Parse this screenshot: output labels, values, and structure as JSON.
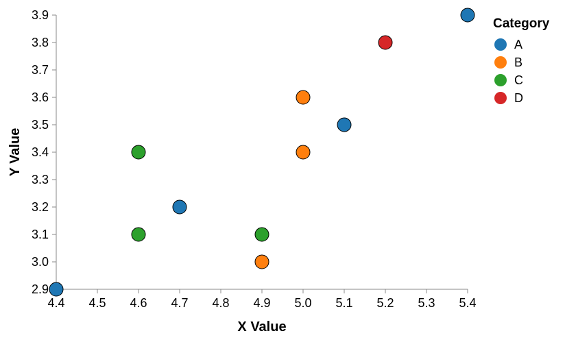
{
  "chart_data": {
    "type": "scatter",
    "title": "",
    "xlabel": "X Value",
    "ylabel": "Y Value",
    "xlim": [
      4.4,
      5.4
    ],
    "ylim": [
      2.9,
      3.9
    ],
    "x_ticks": [
      "4.4",
      "4.5",
      "4.6",
      "4.7",
      "4.8",
      "4.9",
      "5.0",
      "5.1",
      "5.2",
      "5.3",
      "5.4"
    ],
    "y_ticks": [
      "2.9",
      "3.0",
      "3.1",
      "3.2",
      "3.3",
      "3.4",
      "3.5",
      "3.6",
      "3.7",
      "3.8",
      "3.9"
    ],
    "grid": false,
    "legend": {
      "title": "Category",
      "placement": "right"
    },
    "series": [
      {
        "name": "A",
        "color": "#1f77b4",
        "points": [
          {
            "x": 4.4,
            "y": 2.9
          },
          {
            "x": 4.7,
            "y": 3.2
          },
          {
            "x": 5.1,
            "y": 3.5
          },
          {
            "x": 5.4,
            "y": 3.9
          }
        ]
      },
      {
        "name": "B",
        "color": "#ff7f0e",
        "points": [
          {
            "x": 4.9,
            "y": 3.0
          },
          {
            "x": 5.0,
            "y": 3.4
          },
          {
            "x": 5.0,
            "y": 3.6
          }
        ]
      },
      {
        "name": "C",
        "color": "#2ca02c",
        "points": [
          {
            "x": 4.6,
            "y": 3.1
          },
          {
            "x": 4.6,
            "y": 3.4
          },
          {
            "x": 4.9,
            "y": 3.1
          }
        ]
      },
      {
        "name": "D",
        "color": "#d62728",
        "points": [
          {
            "x": 5.2,
            "y": 3.8
          }
        ]
      }
    ]
  }
}
